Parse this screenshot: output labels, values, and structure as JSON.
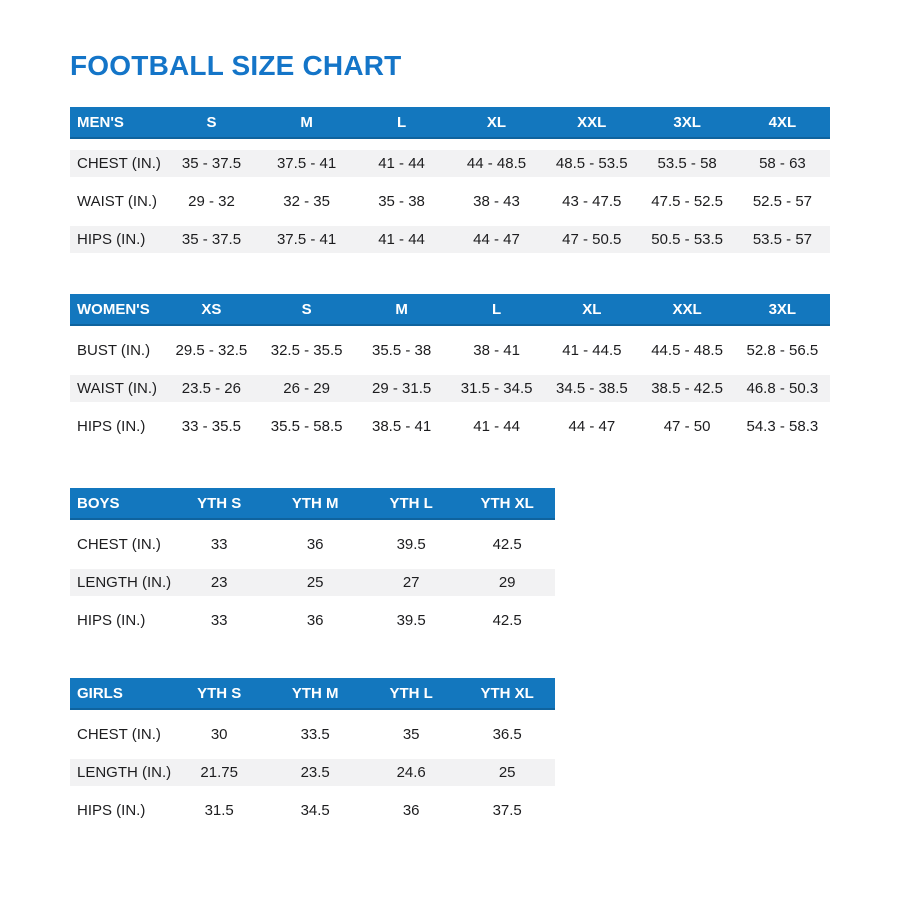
{
  "page": {
    "title": "FOOTBALL SIZE CHART"
  },
  "colors": {
    "title_blue": "#1475C8",
    "header_bg": "#1377BE",
    "header_text": "#FFFFFF",
    "stripe_gray": "#F2F2F3",
    "body_text": "#1D1D1F",
    "background": "#FFFFFF"
  },
  "chart_data": [
    {
      "type": "table",
      "name": "mens",
      "header_label": "MEN'S",
      "columns": [
        "S",
        "M",
        "L",
        "XL",
        "XXL",
        "3XL",
        "4XL"
      ],
      "rows": [
        {
          "label": "CHEST (IN.)",
          "shaded": true,
          "values": [
            "35 - 37.5",
            "37.5 - 41",
            "41 - 44",
            "44 - 48.5",
            "48.5 - 53.5",
            "53.5 - 58",
            "58 - 63"
          ]
        },
        {
          "label": "WAIST (IN.)",
          "shaded": false,
          "values": [
            "29 - 32",
            "32 - 35",
            "35 - 38",
            "38 - 43",
            "43 - 47.5",
            "47.5 - 52.5",
            "52.5 - 57"
          ]
        },
        {
          "label": "HIPS (IN.)",
          "shaded": true,
          "values": [
            "35 - 37.5",
            "37.5 - 41",
            "41 - 44",
            "44 - 47",
            "47 - 50.5",
            "50.5 - 53.5",
            "53.5 - 57"
          ]
        }
      ]
    },
    {
      "type": "table",
      "name": "womens",
      "header_label": "WOMEN'S",
      "columns": [
        "XS",
        "S",
        "M",
        "L",
        "XL",
        "XXL",
        "3XL"
      ],
      "rows": [
        {
          "label": "BUST (IN.)",
          "shaded": false,
          "values": [
            "29.5 - 32.5",
            "32.5 - 35.5",
            "35.5 - 38",
            "38 - 41",
            "41 - 44.5",
            "44.5 - 48.5",
            "52.8 - 56.5"
          ]
        },
        {
          "label": "WAIST (IN.)",
          "shaded": true,
          "values": [
            "23.5 - 26",
            "26 - 29",
            "29 - 31.5",
            "31.5 - 34.5",
            "34.5 - 38.5",
            "38.5 - 42.5",
            "46.8 - 50.3"
          ]
        },
        {
          "label": "HIPS (IN.)",
          "shaded": false,
          "values": [
            "33 - 35.5",
            "35.5 - 58.5",
            "38.5 - 41",
            "41 - 44",
            "44 - 47",
            "47 - 50",
            "54.3 - 58.3"
          ]
        }
      ]
    },
    {
      "type": "table",
      "name": "boys",
      "header_label": "BOYS",
      "columns": [
        "YTH S",
        "YTH M",
        "YTH L",
        "YTH XL"
      ],
      "rows": [
        {
          "label": "CHEST (IN.)",
          "shaded": false,
          "values": [
            "33",
            "36",
            "39.5",
            "42.5"
          ]
        },
        {
          "label": "LENGTH (IN.)",
          "shaded": true,
          "values": [
            "23",
            "25",
            "27",
            "29"
          ]
        },
        {
          "label": "HIPS (IN.)",
          "shaded": false,
          "values": [
            "33",
            "36",
            "39.5",
            "42.5"
          ]
        }
      ]
    },
    {
      "type": "table",
      "name": "girls",
      "header_label": "GIRLS",
      "columns": [
        "YTH S",
        "YTH M",
        "YTH L",
        "YTH XL"
      ],
      "rows": [
        {
          "label": "CHEST (IN.)",
          "shaded": false,
          "values": [
            "30",
            "33.5",
            "35",
            "36.5"
          ]
        },
        {
          "label": "LENGTH (IN.)",
          "shaded": true,
          "values": [
            "21.75",
            "23.5",
            "24.6",
            "25"
          ]
        },
        {
          "label": "HIPS (IN.)",
          "shaded": false,
          "values": [
            "31.5",
            "34.5",
            "36",
            "37.5"
          ]
        }
      ]
    }
  ]
}
